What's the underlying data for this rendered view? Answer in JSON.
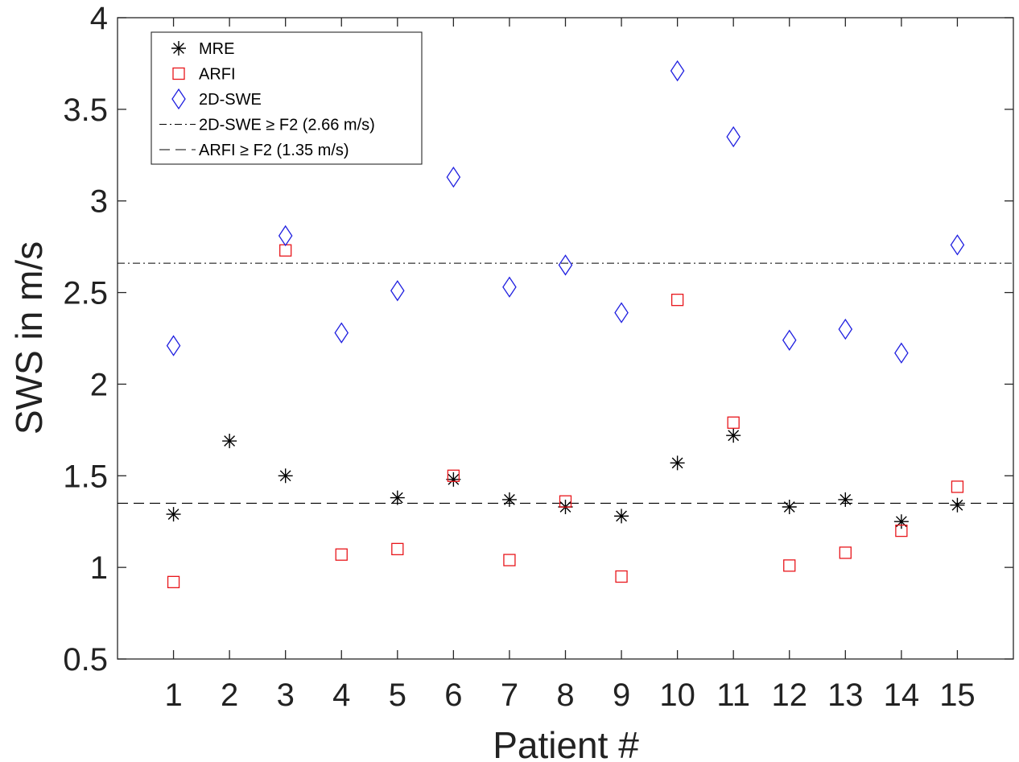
{
  "chart_data": {
    "type": "scatter",
    "xlabel": "Patient #",
    "ylabel": "SWS in m/s",
    "xlim": [
      0,
      16
    ],
    "ylim": [
      0.5,
      4
    ],
    "xticks": [
      1,
      2,
      3,
      4,
      5,
      6,
      7,
      8,
      9,
      10,
      11,
      12,
      13,
      14,
      15
    ],
    "xtick_labels": [
      "1",
      "2",
      "3",
      "4",
      "5",
      "6",
      "7",
      "8",
      "9",
      "10",
      "11",
      "12",
      "13",
      "14",
      "15"
    ],
    "yticks": [
      0.5,
      1,
      1.5,
      2,
      2.5,
      3,
      3.5,
      4
    ],
    "ytick_labels": [
      "0.5",
      "1",
      "1.5",
      "2",
      "2.5",
      "3",
      "3.5",
      "4"
    ],
    "grid": false,
    "legend_position": "top-left",
    "series": [
      {
        "name": "MRE",
        "marker": "asterisk",
        "color": "#000000",
        "x": [
          1,
          2,
          3,
          5,
          6,
          7,
          8,
          9,
          10,
          11,
          12,
          13,
          14,
          15
        ],
        "y": [
          1.29,
          1.69,
          1.5,
          1.38,
          1.48,
          1.37,
          1.33,
          1.28,
          1.57,
          1.72,
          1.33,
          1.37,
          1.25,
          1.34
        ]
      },
      {
        "name": "ARFI",
        "marker": "square",
        "color": "#e8161b",
        "x": [
          1,
          3,
          4,
          5,
          6,
          7,
          8,
          9,
          10,
          11,
          12,
          13,
          14,
          15
        ],
        "y": [
          0.92,
          2.73,
          1.07,
          1.1,
          1.5,
          1.04,
          1.36,
          0.95,
          2.46,
          1.79,
          1.01,
          1.08,
          1.2,
          1.44
        ]
      },
      {
        "name": "2D-SWE",
        "marker": "diamond",
        "color": "#1f1fe0",
        "x": [
          1,
          3,
          4,
          5,
          6,
          7,
          8,
          9,
          10,
          11,
          12,
          13,
          14,
          15
        ],
        "y": [
          2.21,
          2.81,
          2.28,
          2.51,
          3.13,
          2.53,
          2.65,
          2.39,
          3.71,
          3.35,
          2.24,
          2.3,
          2.17,
          2.76
        ]
      }
    ],
    "reference_lines": [
      {
        "name": "2D-SWE ≥  F2 (2.66 m/s)",
        "y": 2.66,
        "style": "dash-dot",
        "color": "#000000"
      },
      {
        "name": "ARFI ≥  F2 (1.35 m/s)",
        "y": 1.35,
        "style": "dashed",
        "color": "#000000"
      }
    ]
  }
}
